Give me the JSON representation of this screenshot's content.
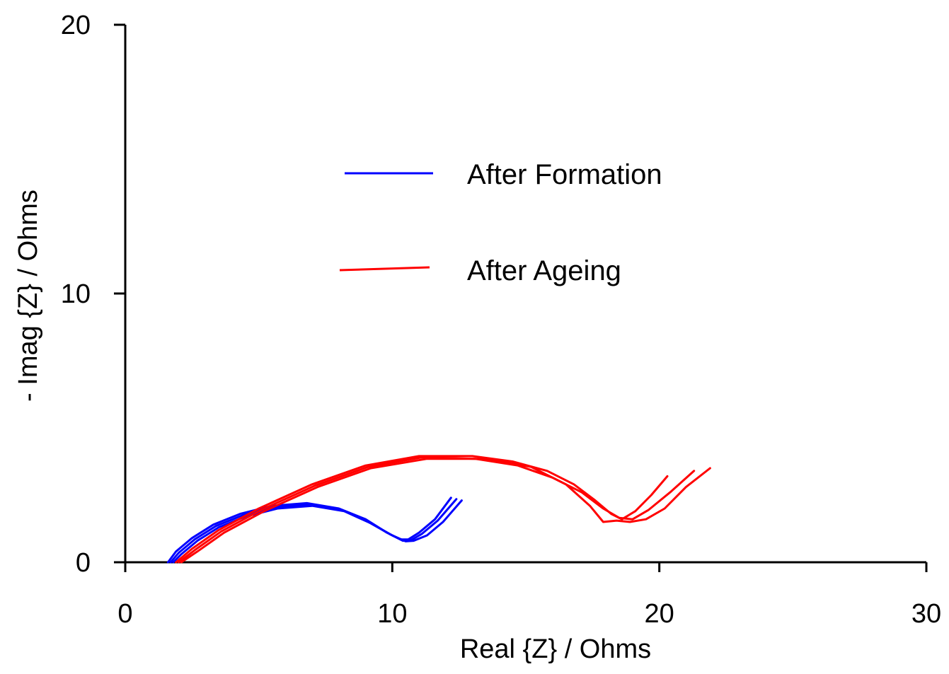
{
  "chart_data": {
    "type": "line",
    "title": "",
    "xlabel": "Real {Z} / Ohms",
    "ylabel": "- Imag {Z} / Ohms",
    "xlim": [
      0,
      30
    ],
    "ylim": [
      0,
      20
    ],
    "xticks": [
      0,
      10,
      20,
      30
    ],
    "yticks": [
      0,
      10,
      20
    ],
    "grid": false,
    "legend_position": "center",
    "series": [
      {
        "name": "After Formation",
        "color": "#0000ff",
        "curves": [
          {
            "x": [
              1.6,
              1.9,
              2.5,
              3.3,
              4.3,
              5.5,
              6.8,
              8.0,
              9.0,
              9.8,
              10.3,
              10.6,
              11.0,
              11.6,
              12.2
            ],
            "y": [
              0.0,
              0.4,
              0.9,
              1.4,
              1.8,
              2.1,
              2.2,
              2.0,
              1.6,
              1.1,
              0.85,
              0.85,
              1.1,
              1.6,
              2.4
            ]
          },
          {
            "x": [
              1.7,
              2.0,
              2.6,
              3.4,
              4.4,
              5.6,
              6.9,
              8.1,
              9.1,
              9.9,
              10.4,
              10.7,
              11.1,
              11.7,
              12.4
            ],
            "y": [
              0.0,
              0.35,
              0.85,
              1.35,
              1.75,
              2.05,
              2.15,
              1.95,
              1.5,
              1.05,
              0.8,
              0.82,
              1.05,
              1.55,
              2.35
            ]
          },
          {
            "x": [
              1.8,
              2.1,
              2.7,
              3.5,
              4.5,
              5.7,
              7.0,
              8.2,
              9.2,
              10.0,
              10.5,
              10.8,
              11.3,
              11.9,
              12.6
            ],
            "y": [
              0.0,
              0.3,
              0.8,
              1.3,
              1.7,
              2.0,
              2.1,
              1.9,
              1.45,
              1.0,
              0.78,
              0.8,
              1.0,
              1.5,
              2.3
            ]
          }
        ]
      },
      {
        "name": "After Ageing",
        "color": "#ff0000",
        "curves": [
          {
            "x": [
              1.9,
              2.5,
              3.5,
              5.0,
              7.0,
              9.0,
              11.0,
              13.0,
              14.5,
              15.8,
              16.8,
              17.6,
              18.2,
              18.6,
              19.1,
              19.7,
              20.3
            ],
            "y": [
              0.0,
              0.5,
              1.2,
              2.0,
              2.9,
              3.6,
              3.95,
              3.95,
              3.75,
              3.4,
              2.9,
              2.3,
              1.8,
              1.6,
              1.9,
              2.5,
              3.2
            ]
          },
          {
            "x": [
              2.0,
              2.6,
              3.6,
              5.1,
              7.1,
              9.1,
              11.1,
              13.1,
              14.7,
              16.0,
              17.1,
              17.9,
              18.5,
              19.0,
              19.6,
              20.4,
              21.3
            ],
            "y": [
              0.0,
              0.45,
              1.15,
              1.95,
              2.85,
              3.55,
              3.9,
              3.85,
              3.6,
              3.15,
              2.6,
              2.0,
              1.65,
              1.6,
              1.95,
              2.6,
              3.4
            ]
          },
          {
            "x": [
              2.1,
              2.7,
              3.7,
              5.2,
              7.2,
              9.2,
              11.3,
              13.5,
              15.2,
              16.5,
              17.4,
              17.9,
              18.4,
              18.9,
              19.5,
              20.2,
              21.0,
              21.9
            ],
            "y": [
              0.0,
              0.4,
              1.1,
              1.9,
              2.8,
              3.5,
              3.85,
              3.85,
              3.55,
              2.9,
              2.1,
              1.5,
              1.55,
              1.5,
              1.6,
              2.0,
              2.8,
              3.5
            ]
          }
        ]
      }
    ]
  }
}
